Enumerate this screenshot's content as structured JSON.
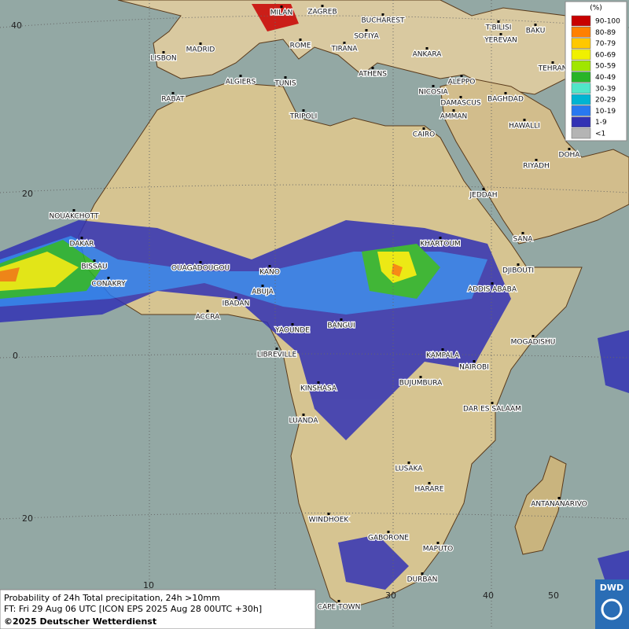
{
  "map": {
    "cities": [
      "MILAN",
      "ZAGREB",
      "BUCHAREST",
      "T'BILISI",
      "BAKU",
      "SOFIYA",
      "YEREVAN",
      "MADRID",
      "ROME",
      "TIRANA",
      "ANKARA",
      "LISBON",
      "TEHRAN",
      "ATHENS",
      "ALGIERS",
      "TUNIS",
      "ALEPPO",
      "NICOSIA",
      "RABAT",
      "BAGHDAD",
      "DAMASCUS",
      "AMMAN",
      "TRIPOLI",
      "HAWALLI",
      "CAIRO",
      "DOHA",
      "RIYADH",
      "JEDDAH",
      "NOUAKCHOTT",
      "SANA",
      "KHARTOUM",
      "DAKAR",
      "BISSAU",
      "OUAGADOUGOU",
      "KANO",
      "DJIBOUTI",
      "CONAKRY",
      "ABUJA",
      "ADDIS ABABA",
      "IBADAN",
      "ACCRA",
      "BANGUI",
      "YAOUNDE",
      "MOGADISHU",
      "LIBREVILLE",
      "KAMPALA",
      "NAIROBI",
      "BUJUMBURA",
      "KINSHASA",
      "DAR ES SALAAM",
      "LUANDA",
      "LUSAKA",
      "HARARE",
      "ANTANANARIVO",
      "WINDHOEK",
      "GABORONE",
      "MAPUTO",
      "DURBAN",
      "CAPE TOWN"
    ],
    "graticule": [
      "40",
      "20",
      "0",
      "20",
      "10",
      "30",
      "40",
      "50"
    ]
  },
  "legend": {
    "unit": "(%)",
    "items": [
      {
        "label": "90-100",
        "color": "#c80000"
      },
      {
        "label": "80-89",
        "color": "#ff8000"
      },
      {
        "label": "70-79",
        "color": "#ffc800"
      },
      {
        "label": "60-69",
        "color": "#f0f000"
      },
      {
        "label": "50-59",
        "color": "#a0e600"
      },
      {
        "label": "40-49",
        "color": "#28b428"
      },
      {
        "label": "30-39",
        "color": "#50e6c8"
      },
      {
        "label": "20-29",
        "color": "#00b4d2"
      },
      {
        "label": "10-19",
        "color": "#2878f0"
      },
      {
        "label": "1-9",
        "color": "#3232b4"
      },
      {
        "label": "<1",
        "color": "#b4b4b4"
      }
    ]
  },
  "caption": {
    "lines": [
      "Probability of 24h Total precipitation, 24h >10mm",
      "FT: Fri 29 Aug 06 UTC [ICON EPS 2025 Aug 28 00UTC +30h]"
    ],
    "copyright": "©2025 Deutscher Wetterdienst"
  },
  "logo": "DWD"
}
